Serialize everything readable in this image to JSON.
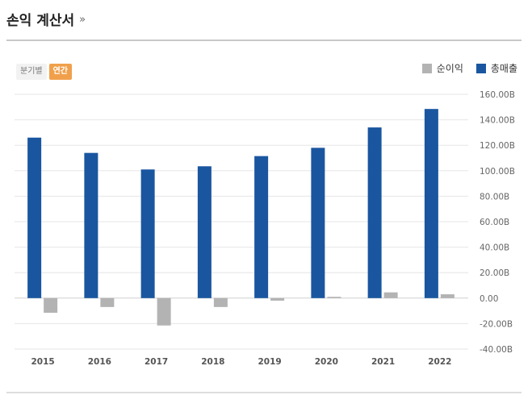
{
  "header": {
    "title": "손익 계산서",
    "more": "»"
  },
  "toggle": {
    "quarterly_label": "분기별",
    "annual_label": "연간"
  },
  "legend": {
    "net_income_label": "순이익",
    "revenue_label": "총매출"
  },
  "colors": {
    "revenue": "#1a56a0",
    "net_income": "#b3b3b3",
    "active_toggle": "#f0a04b"
  },
  "chart_data": {
    "type": "bar",
    "categories": [
      "2015",
      "2016",
      "2017",
      "2018",
      "2019",
      "2020",
      "2021",
      "2022"
    ],
    "series": [
      {
        "name": "총매출",
        "values": [
          126.0,
          114.0,
          101.0,
          103.5,
          111.5,
          118.0,
          134.0,
          148.5
        ]
      },
      {
        "name": "순이익",
        "values": [
          -11.5,
          -7.0,
          -21.5,
          -7.0,
          -2.0,
          1.0,
          4.5,
          3.0
        ]
      }
    ],
    "y_ticks": [
      "160.00B",
      "140.00B",
      "120.00B",
      "100.00B",
      "80.00B",
      "60.00B",
      "40.00B",
      "20.00B",
      "0.00",
      "-20.00B",
      "-40.00B"
    ],
    "ylim": [
      -40,
      160
    ],
    "unit": "B",
    "grid": true,
    "legend_position": "top-right"
  }
}
